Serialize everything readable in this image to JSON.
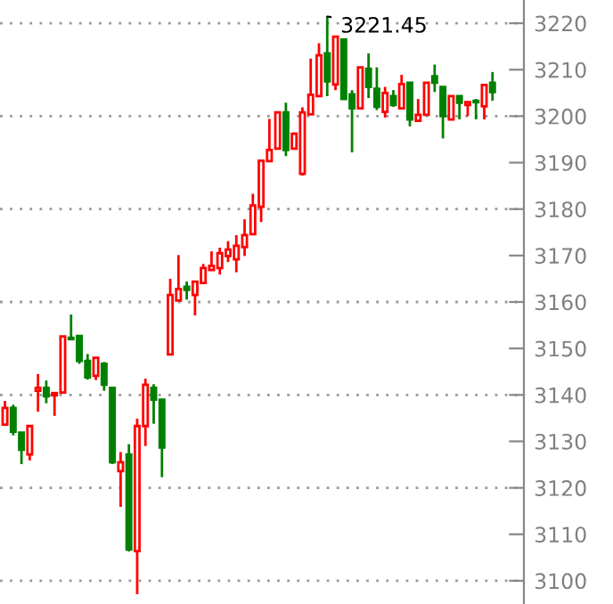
{
  "chart_data": {
    "type": "candlestick",
    "categories": [
      null,
      null,
      null,
      null,
      null,
      null,
      null,
      null,
      null,
      null,
      null,
      null,
      null,
      null,
      null,
      null,
      null,
      null,
      null,
      null,
      null,
      null,
      null,
      null,
      null,
      null,
      null,
      null,
      null,
      null,
      null,
      null,
      null,
      null,
      null,
      null,
      null,
      null,
      null,
      null,
      null,
      null,
      null,
      null,
      null,
      null,
      null,
      null,
      null,
      null,
      null,
      null,
      null,
      null,
      null,
      null,
      null,
      null,
      null,
      null
    ],
    "ohlc": [
      [
        3133.6,
        3138.7,
        3133.6,
        3137.2
      ],
      [
        3137.2,
        3137.9,
        3131.3,
        3132.1
      ],
      [
        3131.9,
        3131.9,
        3125.1,
        3128.2
      ],
      [
        3127.2,
        3133.3,
        3125.9,
        3133.3
      ],
      [
        3140.9,
        3144.5,
        3136.4,
        3141.5
      ],
      [
        3141.5,
        3143.1,
        3138.2,
        3139.7
      ],
      [
        3139.9,
        3140.4,
        3135.5,
        3140.4
      ],
      [
        3140.5,
        3152.6,
        3140.5,
        3152.6
      ],
      [
        3152.3,
        3157.3,
        3152.0,
        3152.0
      ],
      [
        3152.7,
        3152.7,
        3146.7,
        3147.3
      ],
      [
        3147.3,
        3148.8,
        3143.3,
        3143.8
      ],
      [
        3144.1,
        3148.0,
        3143.2,
        3148.0
      ],
      [
        3146.7,
        3147.1,
        3140.9,
        3142.2
      ],
      [
        3141.5,
        3141.5,
        3125.1,
        3125.5
      ],
      [
        3123.6,
        3127.7,
        3115.9,
        3125.5
      ],
      [
        3127.2,
        3129.4,
        3106.3,
        3106.7
      ],
      [
        3106.4,
        3134.9,
        3097.1,
        3133.3
      ],
      [
        3133.3,
        3143.5,
        3129.0,
        3142.2
      ],
      [
        3141.5,
        3142.3,
        3133.8,
        3139.0
      ],
      [
        3139.0,
        3139.0,
        3122.3,
        3128.7
      ],
      [
        3148.7,
        3165.0,
        3148.7,
        3161.5
      ],
      [
        3160.3,
        3170.1,
        3160.3,
        3162.8
      ],
      [
        3163.3,
        3164.4,
        3160.5,
        3162.6
      ],
      [
        3161.5,
        3164.4,
        3157.1,
        3164.4
      ],
      [
        3164.1,
        3168.2,
        3164.1,
        3167.3
      ],
      [
        3166.9,
        3170.9,
        3166.9,
        3167.8
      ],
      [
        3167.3,
        3171.7,
        3165.9,
        3170.5
      ],
      [
        3169.9,
        3173.1,
        3168.6,
        3171.3
      ],
      [
        3169.2,
        3174.4,
        3166.4,
        3172.1
      ],
      [
        3171.8,
        3177.8,
        3169.9,
        3174.4
      ],
      [
        3174.6,
        3183.3,
        3174.6,
        3180.8
      ],
      [
        3180.5,
        3190.6,
        3177.2,
        3190.4
      ],
      [
        3190.3,
        3199.4,
        3190.3,
        3192.7
      ],
      [
        3193.0,
        3200.8,
        3193.0,
        3200.8
      ],
      [
        3200.8,
        3202.9,
        3191.4,
        3192.7
      ],
      [
        3193.0,
        3196.5,
        3193.0,
        3196.2
      ],
      [
        3187.6,
        3201.9,
        3187.2,
        3200.8
      ],
      [
        3200.4,
        3212.4,
        3200.4,
        3204.6
      ],
      [
        3204.3,
        3215.7,
        3204.3,
        3213.1
      ],
      [
        3213.5,
        3221.45,
        3204.3,
        3207.5
      ],
      [
        3206.8,
        3217.1,
        3205.6,
        3217.1
      ],
      [
        3216.5,
        3216.5,
        3203.7,
        3203.7
      ],
      [
        3204.7,
        3205.6,
        3192.2,
        3201.7
      ],
      [
        3201.7,
        3210.5,
        3201.7,
        3210.5
      ],
      [
        3210.2,
        3213.5,
        3203.9,
        3206.3
      ],
      [
        3205.9,
        3210.5,
        3201.3,
        3202.0
      ],
      [
        3200.9,
        3206.3,
        3199.7,
        3205.0
      ],
      [
        3204.3,
        3205.6,
        3202.0,
        3202.4
      ],
      [
        3201.7,
        3208.9,
        3201.7,
        3206.9
      ],
      [
        3207.2,
        3207.2,
        3197.8,
        3199.3
      ],
      [
        3199.0,
        3203.7,
        3199.0,
        3200.3
      ],
      [
        3200.3,
        3207.2,
        3200.3,
        3207.2
      ],
      [
        3208.6,
        3211.1,
        3205.2,
        3207.2
      ],
      [
        3206.3,
        3206.3,
        3195.2,
        3200.0
      ],
      [
        3199.3,
        3204.3,
        3199.3,
        3204.3
      ],
      [
        3204.3,
        3204.3,
        3199.3,
        3202.9
      ],
      [
        3202.4,
        3203.0,
        3200.0,
        3203.0
      ],
      [
        3203.3,
        3203.7,
        3199.3,
        3203.0
      ],
      [
        3202.1,
        3206.7,
        3199.3,
        3206.7
      ],
      [
        3207.2,
        3209.5,
        3203.3,
        3205.2
      ]
    ],
    "colors": [
      "#ff0000",
      "#008000",
      "#008000",
      "#ff0000",
      "#ff0000",
      "#008000",
      "#ff0000",
      "#ff0000",
      "#008000",
      "#008000",
      "#008000",
      "#ff0000",
      "#008000",
      "#008000",
      "#ff0000",
      "#008000",
      "#ff0000",
      "#ff0000",
      "#008000",
      "#008000",
      "#ff0000",
      "#ff0000",
      "#008000",
      "#ff0000",
      "#ff0000",
      "#ff0000",
      "#ff0000",
      "#ff0000",
      "#ff0000",
      "#ff0000",
      "#ff0000",
      "#ff0000",
      "#ff0000",
      "#ff0000",
      "#008000",
      "#ff0000",
      "#ff0000",
      "#ff0000",
      "#ff0000",
      "#008000",
      "#ff0000",
      "#008000",
      "#008000",
      "#ff0000",
      "#008000",
      "#008000",
      "#ff0000",
      "#008000",
      "#ff0000",
      "#008000",
      "#ff0000",
      "#ff0000",
      "#008000",
      "#008000",
      "#ff0000",
      "#008000",
      "#ff0000",
      "#008000",
      "#ff0000",
      "#008000"
    ],
    "ylim": [
      3095,
      3225
    ],
    "yticks": [
      3100,
      3110,
      3120,
      3130,
      3140,
      3150,
      3160,
      3170,
      3180,
      3190,
      3200,
      3210,
      3220
    ],
    "grid": "y",
    "annotations": [
      "3221.45"
    ]
  }
}
